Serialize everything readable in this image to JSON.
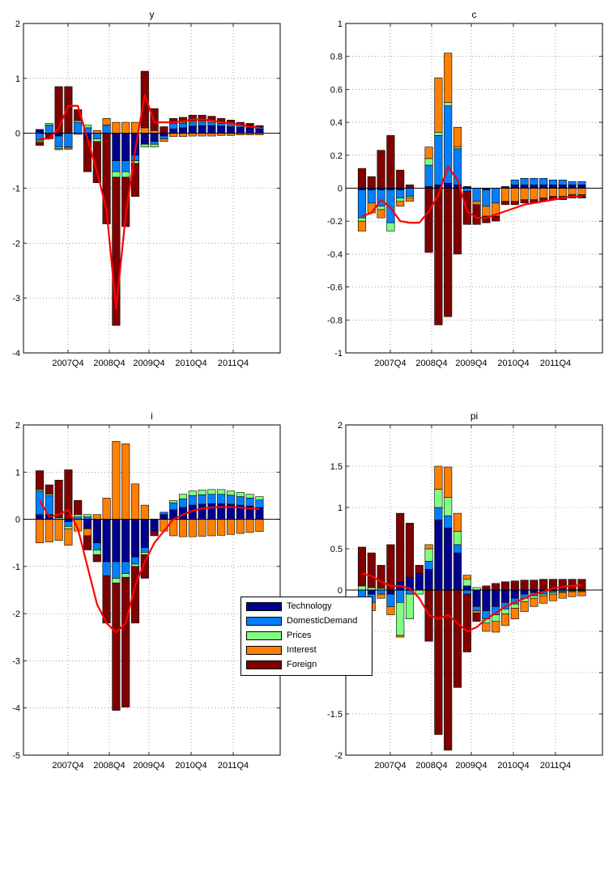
{
  "chart_data": [
    {
      "type": "bar",
      "title": "y",
      "ylim": [
        -4,
        2
      ],
      "yticks": [
        -4,
        -3,
        -2,
        -1,
        0,
        1,
        2
      ],
      "xtick_labels": [
        "2007Q4",
        "2008Q4",
        "2009Q4",
        "2010Q4",
        "2011Q4"
      ],
      "grid": true,
      "stacked": true,
      "series": [
        {
          "name": "Technology",
          "values": [
            0.07,
            0.0,
            -0.05,
            0.0,
            0.0,
            -0.1,
            0.0,
            0.0,
            -0.5,
            -0.5,
            -0.4,
            -0.2,
            -0.15,
            -0.05,
            0.08,
            0.1,
            0.13,
            0.14,
            0.14,
            0.13,
            0.12,
            0.11,
            0.1,
            0.08
          ]
        },
        {
          "name": "DomesticDemand",
          "values": [
            -0.12,
            0.15,
            -0.2,
            -0.25,
            0.2,
            0.1,
            -0.1,
            0.15,
            -0.2,
            -0.2,
            -0.1,
            0.0,
            -0.05,
            -0.05,
            0.1,
            0.08,
            0.07,
            0.06,
            0.06,
            0.05,
            0.05,
            0.04,
            0.04,
            0.03
          ]
        },
        {
          "name": "Prices",
          "values": [
            -0.02,
            0.03,
            -0.03,
            -0.02,
            0.03,
            0.05,
            -0.05,
            0.0,
            -0.1,
            -0.1,
            -0.05,
            -0.05,
            -0.05,
            0.0,
            0.02,
            0.02,
            0.02,
            0.02,
            0.02,
            0.02,
            0.01,
            0.01,
            0.01,
            0.01
          ]
        },
        {
          "name": "Interest",
          "values": [
            -0.03,
            0.0,
            -0.02,
            -0.02,
            -0.02,
            0.0,
            0.05,
            0.12,
            0.2,
            0.2,
            0.2,
            0.1,
            0.05,
            -0.05,
            -0.06,
            -0.06,
            -0.05,
            -0.05,
            -0.05,
            -0.04,
            -0.04,
            -0.03,
            -0.03,
            -0.03
          ]
        },
        {
          "name": "Foreign",
          "values": [
            -0.05,
            -0.1,
            0.85,
            0.85,
            0.2,
            -0.6,
            -0.75,
            -1.65,
            -2.7,
            -0.9,
            -0.6,
            1.03,
            0.4,
            0.12,
            0.07,
            0.09,
            0.11,
            0.11,
            0.09,
            0.07,
            0.06,
            0.04,
            0.03,
            0.02
          ]
        }
      ],
      "line": {
        "values": [
          -0.1,
          -0.1,
          0.1,
          0.5,
          0.5,
          -0.1,
          -0.7,
          -1.4,
          -3.2,
          -1.5,
          -0.3,
          0.7,
          0.2,
          0.2,
          0.2,
          0.22,
          0.25,
          0.25,
          0.23,
          0.2,
          0.18,
          0.15,
          0.12,
          0.1
        ]
      }
    },
    {
      "type": "bar",
      "title": "c",
      "ylim": [
        -1,
        1
      ],
      "yticks": [
        -1,
        -0.8,
        -0.6,
        -0.4,
        -0.2,
        0,
        0.2,
        0.4,
        0.6,
        0.8,
        1
      ],
      "xtick_labels": [
        "2007Q4",
        "2008Q4",
        "2009Q4",
        "2010Q4",
        "2011Q4"
      ],
      "grid": true,
      "stacked": true,
      "series": [
        {
          "name": "Technology",
          "values": [
            -0.01,
            -0.01,
            -0.01,
            -0.01,
            -0.01,
            0.0,
            0.0,
            0.01,
            0.02,
            0.03,
            0.02,
            0.01,
            0.0,
            -0.01,
            0.0,
            0.01,
            0.02,
            0.02,
            0.02,
            0.02,
            0.02,
            0.02,
            0.02,
            0.02
          ]
        },
        {
          "name": "DomesticDemand",
          "values": [
            -0.17,
            -0.08,
            -0.1,
            -0.2,
            -0.05,
            -0.05,
            0.0,
            0.13,
            0.3,
            0.47,
            0.22,
            -0.02,
            -0.08,
            -0.1,
            -0.09,
            0.0,
            0.03,
            0.04,
            0.04,
            0.04,
            0.03,
            0.03,
            0.02,
            0.02
          ]
        },
        {
          "name": "Prices",
          "values": [
            -0.02,
            0.0,
            -0.02,
            -0.05,
            -0.02,
            -0.01,
            0.0,
            0.04,
            0.02,
            0.02,
            0.01,
            0.0,
            0.0,
            0.0,
            0.0,
            0.0,
            0.0,
            0.0,
            0.0,
            0.0,
            0.0,
            0.0,
            0.0,
            0.0
          ]
        },
        {
          "name": "Interest",
          "values": [
            -0.06,
            -0.06,
            -0.05,
            0.0,
            -0.03,
            -0.02,
            0.0,
            0.07,
            0.33,
            0.3,
            0.12,
            0.0,
            -0.02,
            -0.06,
            -0.08,
            -0.08,
            -0.08,
            -0.07,
            -0.07,
            -0.06,
            -0.05,
            -0.05,
            -0.04,
            -0.04
          ]
        },
        {
          "name": "Foreign",
          "values": [
            0.12,
            0.07,
            0.23,
            0.32,
            0.11,
            0.02,
            0.0,
            -0.39,
            -0.83,
            -0.78,
            -0.4,
            -0.2,
            -0.12,
            -0.04,
            -0.03,
            -0.02,
            -0.02,
            -0.02,
            -0.02,
            -0.02,
            -0.02,
            -0.02,
            -0.02,
            -0.02
          ]
        }
      ],
      "line": {
        "values": [
          -0.17,
          -0.15,
          -0.07,
          -0.12,
          -0.2,
          -0.21,
          -0.21,
          -0.14,
          -0.04,
          0.13,
          0.05,
          -0.14,
          -0.18,
          -0.18,
          -0.16,
          -0.14,
          -0.12,
          -0.1,
          -0.09,
          -0.08,
          -0.07,
          -0.06,
          -0.05,
          -0.05
        ]
      }
    },
    {
      "type": "bar",
      "title": "i",
      "ylim": [
        -5,
        2
      ],
      "yticks": [
        -5,
        -4,
        -3,
        -2,
        -1,
        0,
        1,
        2
      ],
      "xtick_labels": [
        "2007Q4",
        "2008Q4",
        "2009Q4",
        "2010Q4",
        "2011Q4"
      ],
      "grid": true,
      "stacked": true,
      "series": [
        {
          "name": "Technology",
          "values": [
            0.1,
            0.1,
            0.0,
            -0.05,
            0.0,
            -0.2,
            -0.5,
            -0.9,
            -0.9,
            -0.9,
            -0.8,
            -0.6,
            -0.25,
            0.1,
            0.2,
            0.25,
            0.3,
            0.32,
            0.33,
            0.33,
            0.32,
            0.3,
            0.28,
            0.25
          ]
        },
        {
          "name": "DomesticDemand",
          "values": [
            0.5,
            0.4,
            0.0,
            -0.1,
            0.05,
            0.05,
            -0.15,
            -0.3,
            -0.35,
            -0.25,
            -0.15,
            -0.1,
            0.0,
            0.05,
            0.15,
            0.18,
            0.2,
            0.2,
            0.2,
            0.2,
            0.19,
            0.18,
            0.17,
            0.16
          ]
        },
        {
          "name": "Prices",
          "values": [
            0.03,
            0.03,
            0.03,
            -0.05,
            0.05,
            0.05,
            -0.1,
            0.0,
            -0.1,
            -0.08,
            -0.05,
            -0.05,
            0.0,
            0.0,
            0.05,
            0.1,
            0.1,
            0.1,
            0.1,
            0.1,
            0.09,
            0.09,
            0.08,
            0.07
          ]
        },
        {
          "name": "Interest",
          "values": [
            -0.5,
            -0.48,
            -0.45,
            -0.35,
            -0.25,
            -0.15,
            0.1,
            0.45,
            1.65,
            1.6,
            0.75,
            0.3,
            0.0,
            -0.25,
            -0.35,
            -0.37,
            -0.37,
            -0.36,
            -0.35,
            -0.34,
            -0.32,
            -0.3,
            -0.28,
            -0.26
          ]
        },
        {
          "name": "Foreign",
          "values": [
            0.4,
            0.2,
            0.8,
            1.05,
            0.3,
            -0.3,
            -0.15,
            -1.0,
            -2.7,
            -2.75,
            -1.2,
            -0.5,
            -0.1,
            0.0,
            0.0,
            0.0,
            0.0,
            0.0,
            0.0,
            0.0,
            0.0,
            0.0,
            0.0,
            0.0
          ]
        }
      ],
      "line": {
        "values": [
          0.4,
          0.05,
          0.1,
          0.2,
          -0.2,
          -1.0,
          -1.8,
          -2.2,
          -2.4,
          -2.2,
          -1.4,
          -0.9,
          -0.5,
          -0.25,
          0.0,
          0.1,
          0.18,
          0.23,
          0.25,
          0.26,
          0.26,
          0.25,
          0.23,
          0.22
        ]
      }
    },
    {
      "type": "bar",
      "title": "pi",
      "ylim": [
        -2,
        2
      ],
      "yticks": [
        -2,
        -1.5,
        -1,
        -0.5,
        0,
        0.5,
        1,
        1.5,
        2
      ],
      "xtick_labels": [
        "2007Q4",
        "2008Q4",
        "2009Q4",
        "2010Q4",
        "2011Q4"
      ],
      "grid": true,
      "stacked": true,
      "series": [
        {
          "name": "Technology",
          "values": [
            0.0,
            -0.05,
            0.0,
            -0.05,
            0.1,
            0.15,
            0.2,
            0.25,
            0.85,
            0.75,
            0.45,
            0.05,
            -0.2,
            -0.25,
            -0.2,
            -0.15,
            -0.1,
            -0.05,
            -0.03,
            -0.02,
            -0.01,
            0.0,
            0.0,
            0.0
          ]
        },
        {
          "name": "DomesticDemand",
          "values": [
            -0.2,
            -0.1,
            -0.05,
            -0.15,
            -0.15,
            -0.05,
            0.0,
            0.1,
            0.15,
            0.15,
            0.1,
            -0.05,
            -0.05,
            -0.1,
            -0.1,
            -0.08,
            -0.07,
            -0.05,
            -0.04,
            -0.03,
            -0.02,
            -0.02,
            -0.01,
            -0.01
          ]
        },
        {
          "name": "Prices",
          "values": [
            0.05,
            0.03,
            0.02,
            0.0,
            -0.4,
            -0.3,
            -0.05,
            0.15,
            0.22,
            0.22,
            0.16,
            0.08,
            0.03,
            -0.05,
            -0.08,
            -0.06,
            -0.05,
            -0.04,
            -0.03,
            -0.02,
            -0.02,
            -0.01,
            -0.01,
            -0.01
          ]
        },
        {
          "name": "Interest",
          "values": [
            -0.12,
            -0.1,
            -0.05,
            -0.1,
            -0.02,
            0.0,
            0.0,
            0.05,
            0.28,
            0.37,
            0.22,
            0.05,
            -0.03,
            -0.1,
            -0.13,
            -0.14,
            -0.13,
            -0.12,
            -0.1,
            -0.09,
            -0.08,
            -0.07,
            -0.06,
            -0.05
          ]
        },
        {
          "name": "Foreign",
          "values": [
            0.47,
            0.42,
            0.28,
            0.55,
            0.83,
            0.66,
            0.1,
            -0.62,
            -1.75,
            -1.94,
            -1.18,
            -0.7,
            -0.1,
            0.05,
            0.08,
            0.1,
            0.11,
            0.12,
            0.12,
            0.13,
            0.13,
            0.13,
            0.13,
            0.13
          ]
        }
      ],
      "line": {
        "values": [
          0.2,
          0.17,
          0.1,
          0.05,
          0.05,
          0.02,
          -0.1,
          -0.3,
          -0.35,
          -0.3,
          -0.4,
          -0.5,
          -0.45,
          -0.35,
          -0.28,
          -0.2,
          -0.15,
          -0.1,
          -0.05,
          -0.02,
          0.02,
          0.04,
          0.05,
          0.06
        ]
      }
    }
  ],
  "legend": {
    "entries": [
      "Technology",
      "DomesticDemand",
      "Prices",
      "Interest",
      "Foreign"
    ]
  },
  "colors": {
    "Technology": "#00008f",
    "DomesticDemand": "#0080ff",
    "Prices": "#80ff80",
    "Interest": "#ff8000",
    "Foreign": "#800000",
    "line": "#ff0000"
  }
}
